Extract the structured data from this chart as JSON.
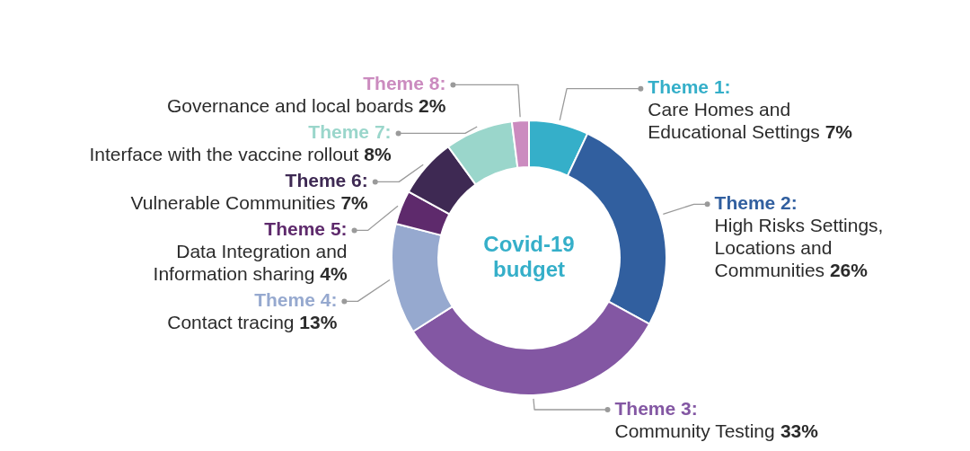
{
  "chart_data": {
    "type": "donut",
    "title": "Covid-19\nbudget",
    "categories": [
      "Theme 1:\nCare Homes and\nEducational Settings",
      "Theme 2:\nHigh Risks Settings,\nLocations and\nCommunities",
      "Theme 3:\nCommunity Testing",
      "Theme 4:\nContact tracing",
      "Theme 5:\nData Integration and\nInformation sharing",
      "Theme 6:\nVulnerable Communities",
      "Theme 7:\nInterface with the vaccine rollout",
      "Theme 8:\nGovernance and local boards"
    ],
    "values": [
      7,
      26,
      33,
      13,
      4,
      7,
      8,
      2
    ],
    "value_labels": [
      "7%",
      "26%",
      "33%",
      "13%",
      "4%",
      "7%",
      "8%",
      "2%"
    ],
    "colors": [
      "#35afc9",
      "#315f9f",
      "#8357a3",
      "#96a9cf",
      "#5e2a6c",
      "#3e2953",
      "#9ad6cb",
      "#cb8bbf"
    ],
    "legend": false
  }
}
